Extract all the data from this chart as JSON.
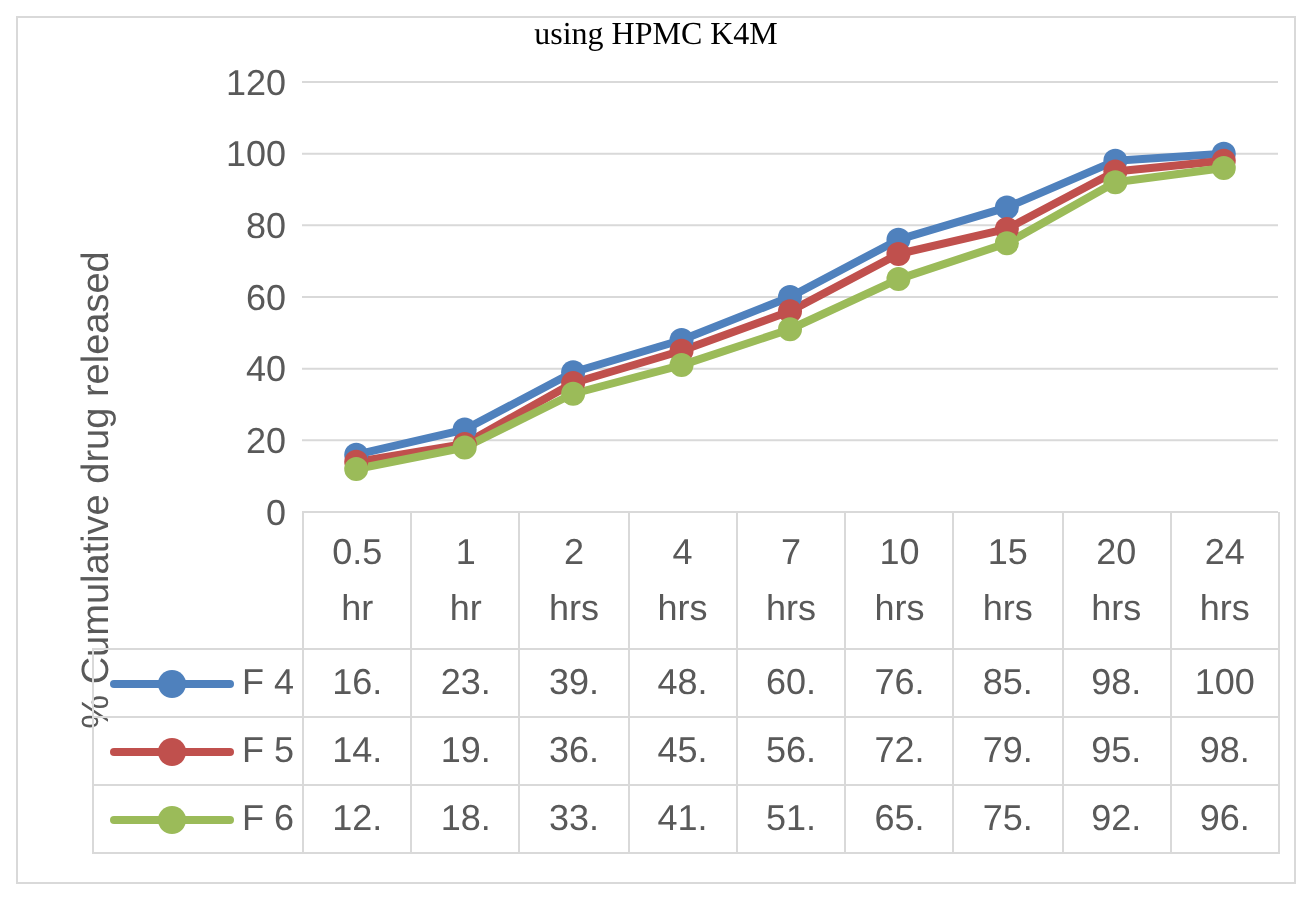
{
  "chart_data": {
    "type": "line",
    "title": "using HPMC K4M",
    "ylabel": "% Cumulative drug released",
    "categories": [
      "0.5 hr",
      "1 hr",
      "2 hrs",
      "4 hrs",
      "7 hrs",
      "10 hrs",
      "15 hrs",
      "20 hrs",
      "24 hrs"
    ],
    "series": [
      {
        "name": "F 4",
        "color": "#4f81bd",
        "values": [
          16,
          23,
          39,
          48,
          60,
          76,
          85,
          98,
          100
        ],
        "value_labels": [
          "16.",
          "23.",
          "39.",
          "48.",
          "60.",
          "76.",
          "85.",
          "98.",
          "100"
        ]
      },
      {
        "name": "F 5",
        "color": "#c0504d",
        "values": [
          14,
          19,
          36,
          45,
          56,
          72,
          79,
          95,
          98
        ],
        "value_labels": [
          "14.",
          "19.",
          "36.",
          "45.",
          "56.",
          "72.",
          "79.",
          "95.",
          "98."
        ]
      },
      {
        "name": "F 6",
        "color": "#9bbb59",
        "values": [
          12,
          18,
          33,
          41,
          51,
          65,
          75,
          92,
          96
        ],
        "value_labels": [
          "12.",
          "18.",
          "33.",
          "41.",
          "51.",
          "65.",
          "75.",
          "92.",
          "96."
        ]
      }
    ],
    "ylim": [
      0,
      120
    ],
    "yticks": [
      0,
      20,
      40,
      60,
      80,
      100,
      120
    ],
    "grid": "y",
    "legend": "bottom left",
    "marker": "circle",
    "line_style": "solid"
  }
}
